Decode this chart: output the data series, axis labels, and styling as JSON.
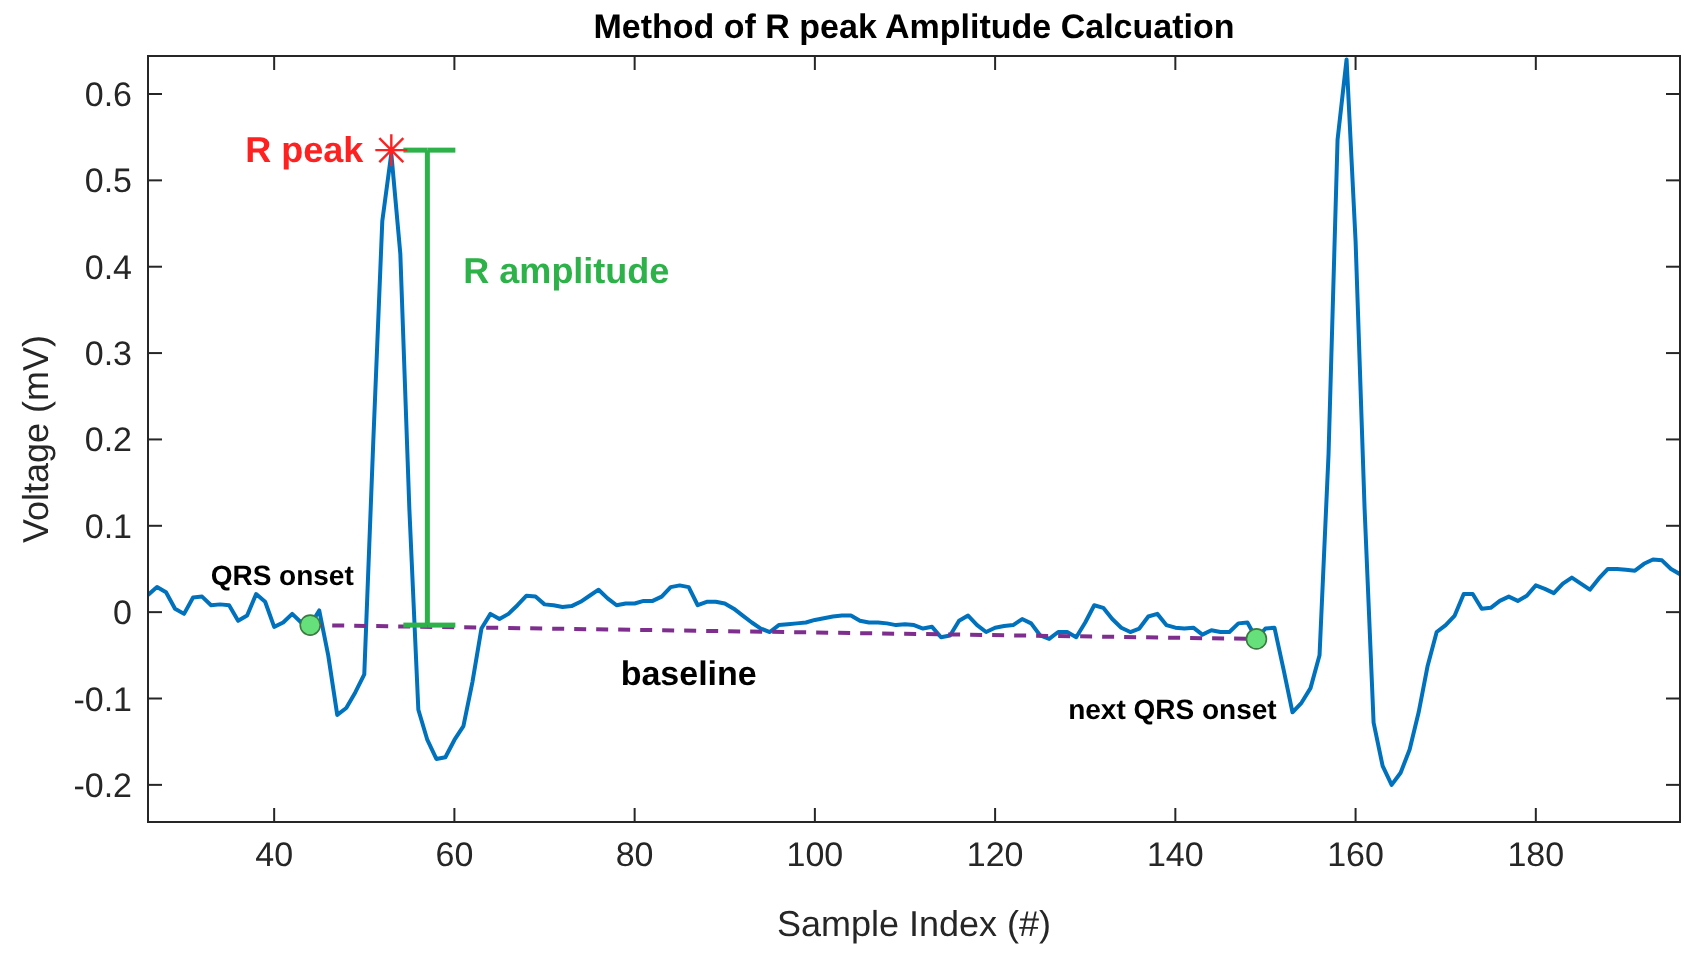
{
  "chart_data": {
    "type": "line",
    "title": "Method of R peak Amplitude Calcuation",
    "xlabel": "Sample Index (#)",
    "ylabel": "Voltage (mV)",
    "xlim": [
      26,
      196
    ],
    "ylim": [
      -0.243,
      0.644
    ],
    "xticks": [
      40,
      60,
      80,
      100,
      120,
      140,
      160,
      180
    ],
    "yticks": [
      -0.2,
      -0.1,
      0,
      0.1,
      0.2,
      0.3,
      0.4,
      0.5,
      0.6
    ],
    "grid": false,
    "series": [
      {
        "color": "#0072bd",
        "marker": "none",
        "line_style": "solid",
        "x": [
          26,
          27,
          28,
          29,
          30,
          31,
          32,
          33,
          34,
          35,
          36,
          37,
          38,
          39,
          40,
          41,
          42,
          43,
          44,
          45,
          46,
          47,
          48,
          49,
          50,
          51,
          52,
          53,
          54,
          55,
          56,
          57,
          58,
          59,
          60,
          61,
          62,
          63,
          64,
          65,
          66,
          67,
          68,
          69,
          70,
          71,
          72,
          73,
          74,
          75,
          76,
          77,
          78,
          79,
          80,
          81,
          82,
          83,
          84,
          85,
          86,
          87,
          88,
          89,
          90,
          91,
          92,
          93,
          94,
          95,
          96,
          97,
          98,
          99,
          100,
          101,
          102,
          103,
          104,
          105,
          106,
          107,
          108,
          109,
          110,
          111,
          112,
          113,
          114,
          115,
          116,
          117,
          118,
          119,
          120,
          121,
          122,
          123,
          124,
          125,
          126,
          127,
          128,
          129,
          130,
          131,
          132,
          133,
          134,
          135,
          136,
          137,
          138,
          139,
          140,
          141,
          142,
          143,
          144,
          145,
          146,
          147,
          148,
          149,
          150,
          151,
          152,
          153,
          154,
          155,
          156,
          157,
          158,
          159,
          160,
          161,
          162,
          163,
          164,
          165,
          166,
          167,
          168,
          169,
          170,
          171,
          172,
          173,
          174,
          175,
          176,
          177,
          178,
          179,
          180,
          181,
          182,
          183,
          184,
          185,
          186,
          187,
          188,
          189,
          190,
          191,
          192,
          193,
          194,
          195,
          196
        ],
        "values": [
          0.02,
          0.029,
          0.023,
          0.004,
          -0.002,
          0.017,
          0.018,
          0.008,
          0.009,
          0.008,
          -0.01,
          -0.004,
          0.021,
          0.012,
          -0.017,
          -0.012,
          -0.002,
          -0.012,
          -0.015,
          0.002,
          -0.05,
          -0.119,
          -0.111,
          -0.093,
          -0.072,
          0.198,
          0.453,
          0.531,
          0.415,
          0.12,
          -0.113,
          -0.148,
          -0.17,
          -0.168,
          -0.148,
          -0.132,
          -0.081,
          -0.019,
          -0.002,
          -0.008,
          -0.002,
          0.008,
          0.019,
          0.018,
          0.009,
          0.008,
          0.006,
          0.007,
          0.012,
          0.019,
          0.026,
          0.016,
          0.008,
          0.01,
          0.01,
          0.013,
          0.013,
          0.018,
          0.029,
          0.031,
          0.029,
          0.008,
          0.012,
          0.012,
          0.01,
          0.004,
          -0.004,
          -0.012,
          -0.019,
          -0.023,
          -0.015,
          -0.014,
          -0.013,
          -0.012,
          -0.009,
          -0.007,
          -0.005,
          -0.004,
          -0.004,
          -0.01,
          -0.012,
          -0.012,
          -0.013,
          -0.015,
          -0.014,
          -0.015,
          -0.019,
          -0.017,
          -0.029,
          -0.027,
          -0.01,
          -0.004,
          -0.015,
          -0.023,
          -0.018,
          -0.016,
          -0.015,
          -0.008,
          -0.013,
          -0.027,
          -0.031,
          -0.023,
          -0.023,
          -0.029,
          -0.012,
          0.008,
          0.005,
          -0.008,
          -0.018,
          -0.023,
          -0.019,
          -0.005,
          -0.002,
          -0.015,
          -0.018,
          -0.019,
          -0.018,
          -0.026,
          -0.021,
          -0.023,
          -0.023,
          -0.013,
          -0.012,
          -0.031,
          -0.019,
          -0.018,
          -0.066,
          -0.116,
          -0.105,
          -0.088,
          -0.05,
          0.183,
          0.547,
          0.64,
          0.43,
          0.12,
          -0.128,
          -0.178,
          -0.2,
          -0.186,
          -0.159,
          -0.116,
          -0.062,
          -0.023,
          -0.015,
          -0.004,
          0.021,
          0.021,
          0.004,
          0.005,
          0.013,
          0.018,
          0.013,
          0.019,
          0.031,
          0.027,
          0.022,
          0.033,
          0.04,
          0.033,
          0.026,
          0.039,
          0.05,
          0.05,
          0.049,
          0.048,
          0.056,
          0.061,
          0.06,
          0.05,
          0.044
        ]
      },
      {
        "color": "#7e2f8e",
        "marker": "none",
        "line_style": "dashed",
        "x": [
          44,
          149
        ],
        "values": [
          -0.015,
          -0.031
        ]
      },
      {
        "color": "#2db24a",
        "marker": "none",
        "line_style": "solid",
        "x": [
          57,
          57
        ],
        "values": [
          -0.015,
          0.535
        ]
      },
      {
        "type": "scatter",
        "color": "#66e07a",
        "marker": "circle",
        "x": [
          44,
          149
        ],
        "values": [
          -0.015,
          -0.031
        ]
      },
      {
        "type": "scatter",
        "color": "#ff2020",
        "marker": "cross",
        "x": [
          53
        ],
        "values": [
          0.535
        ]
      }
    ],
    "annotations": [
      {
        "text": "R peak",
        "x": 53,
        "y": 0.535
      },
      {
        "text": "R amplitude",
        "x": 57,
        "y": 0.4
      },
      {
        "text": "QRS onset",
        "x": 44,
        "y": -0.015
      },
      {
        "text": "baseline",
        "x": 86,
        "y": -0.02
      },
      {
        "text": "next QRS onset",
        "x": 149,
        "y": -0.031
      }
    ]
  }
}
